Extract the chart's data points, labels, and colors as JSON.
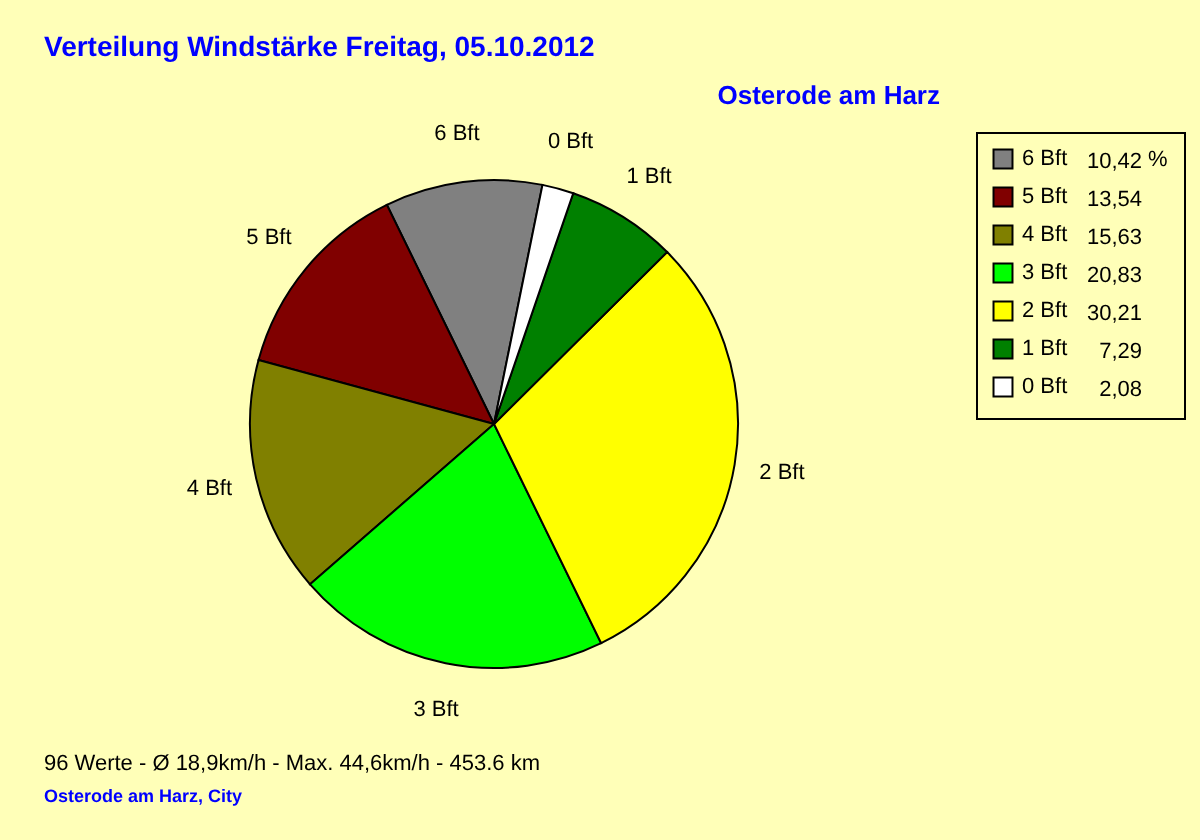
{
  "chart_data": {
    "type": "pie",
    "title": "Verteilung Windstärke  Freitag, 05.10.2012",
    "subtitle": "Osterode am Harz",
    "legend_title": "%",
    "categories": [
      "6 Bft",
      "5 Bft",
      "4 Bft",
      "3 Bft",
      "2 Bft",
      "1 Bft",
      "0 Bft"
    ],
    "values": [
      10.42,
      13.54,
      15.63,
      20.83,
      30.21,
      7.29,
      2.08
    ],
    "value_labels": [
      "10,42",
      "13,54",
      "15,63",
      "20,83",
      "30,21",
      "7,29",
      "2,08"
    ],
    "colors": [
      "#808080",
      "#800000",
      "#808000",
      "#00ff00",
      "#ffff00",
      "#008000",
      "#ffffff"
    ],
    "legend": "top right",
    "annotations": [
      "96 Werte   -   Ø 18,9km/h  -  Max. 44,6km/h   -   453.6 km",
      "Osterode am Harz, City"
    ]
  }
}
